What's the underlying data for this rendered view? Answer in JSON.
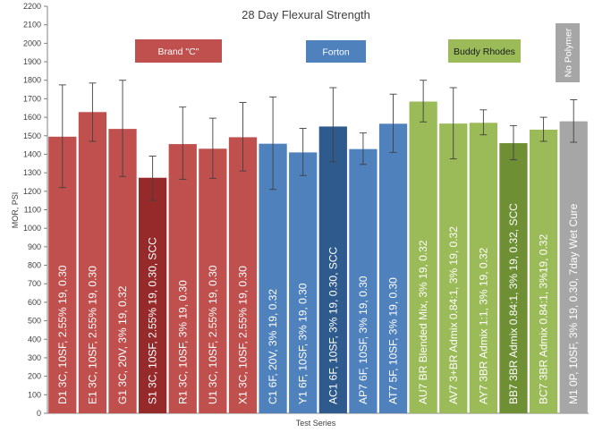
{
  "chart_data": {
    "type": "bar",
    "title": "28 Day Flexural Strength",
    "xlabel": "Test Series",
    "ylabel": "MOR, PSI",
    "ylim": [
      0,
      2200
    ],
    "yticks": [
      0,
      100,
      200,
      300,
      400,
      500,
      600,
      700,
      800,
      900,
      1000,
      1100,
      1200,
      1300,
      1400,
      1500,
      1600,
      1700,
      1800,
      1900,
      2000,
      2100,
      2200
    ],
    "grid": false,
    "categories": [
      "D1 3C, 10SF, 2.55% 19, 0.30",
      "E1 3C, 10SF, 2.55% 19, 0.30",
      "G1 3C, 20V, 3% 19, 0.32",
      "S1 3C, 10SF, 2.55% 19, 0.30, SCC",
      "R1 3C, 10SF, 3% 19, 0.30",
      "U1 3C, 10SF, 2.55% 19, 0.30",
      "X1 3C, 10SF, 2.55% 19, 0.30",
      "C1 6F, 20V, 3% 19, 0.32",
      "Y1 6F, 10SF, 3% 19, 0.30",
      "AC1 6F, 10SF, 3% 19, 0.30, SCC",
      "AP7 6F, 10SF, 3% 19, 0.30",
      "AT7 5F, 10SF, 3% 19, 0.30",
      "AU7 BR Blended Mix, 3% 19, 0.32",
      "AV7 3+BR Admix 0.84:1, 3% 19, 0.32",
      "AY7 3BR Admix 1:1, 3% 19, 0.32",
      "BB7 3BR Admix 0.84:1, 3% 19, 0.32, SCC",
      "BC7 3BR Admix 0.84:1, 3%19, 0.32",
      "M1 0P, 10SF, 3% 19, 0.30, 7day Wet Cure"
    ],
    "values": [
      1495,
      1628,
      1537,
      1273,
      1455,
      1430,
      1492,
      1457,
      1410,
      1550,
      1428,
      1565,
      1685,
      1566,
      1570,
      1460,
      1533,
      1578
    ],
    "error_low": [
      1220,
      1470,
      1280,
      1150,
      1265,
      1270,
      1310,
      1210,
      1285,
      1360,
      1345,
      1410,
      1575,
      1375,
      1505,
      1370,
      1470,
      1465
    ],
    "error_high": [
      1775,
      1785,
      1800,
      1390,
      1655,
      1595,
      1680,
      1710,
      1540,
      1760,
      1515,
      1725,
      1800,
      1760,
      1640,
      1555,
      1600,
      1695
    ],
    "bar_colors": [
      "#c0504d",
      "#c0504d",
      "#c0504d",
      "#962a2b",
      "#c0504d",
      "#c0504d",
      "#c0504d",
      "#4f81bd",
      "#4f81bd",
      "#2e5a8e",
      "#4f81bd",
      "#4f81bd",
      "#9bbb59",
      "#9bbb59",
      "#9bbb59",
      "#6f8f34",
      "#9bbb59",
      "#a6a6a6"
    ],
    "legend": [
      {
        "label": "Brand \"C\"",
        "color": "#c0504d",
        "text_color": "#ffffff"
      },
      {
        "label": "Forton",
        "color": "#4f81bd",
        "text_color": "#ffffff"
      },
      {
        "label": "Buddy Rhodes",
        "color": "#9bbb59",
        "text_color": "#1a1a1a"
      },
      {
        "label": "No Polymer",
        "color": "#a6a6a6",
        "text_color": "#ffffff",
        "vertical": true
      }
    ]
  }
}
